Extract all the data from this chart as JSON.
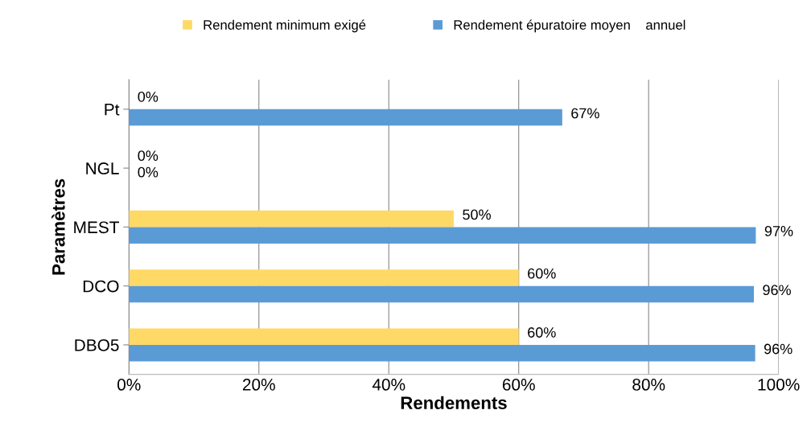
{
  "chart_data": {
    "type": "bar",
    "orientation": "horizontal",
    "categories": [
      "Pt",
      "NGL",
      "MEST",
      "DCO",
      "DBO5"
    ],
    "series": [
      {
        "name": "Rendement minimum exigé",
        "color": "#ffd966",
        "values": [
          0,
          0,
          50,
          60,
          60
        ],
        "value_labels": [
          "0%",
          "0%",
          "50%",
          "60%",
          "60%"
        ]
      },
      {
        "name": "Rendement épuratoire moyen    annuel",
        "color": "#5b9bd5",
        "values": [
          66.7,
          0,
          96.5,
          96.2,
          96.4
        ],
        "value_labels": [
          "67%",
          "0%",
          "97%",
          "96%",
          "96%"
        ]
      }
    ],
    "xlim": [
      0,
      100
    ],
    "xticks": [
      {
        "value": 0,
        "label": "0%"
      },
      {
        "value": 20,
        "label": "20%"
      },
      {
        "value": 40,
        "label": "40%"
      },
      {
        "value": 60,
        "label": "60%"
      },
      {
        "value": 80,
        "label": "80%"
      },
      {
        "value": 100,
        "label": "100%"
      }
    ],
    "xlabel": "Rendements",
    "ylabel": "Paramètres",
    "grid": "x",
    "legend": "top"
  }
}
